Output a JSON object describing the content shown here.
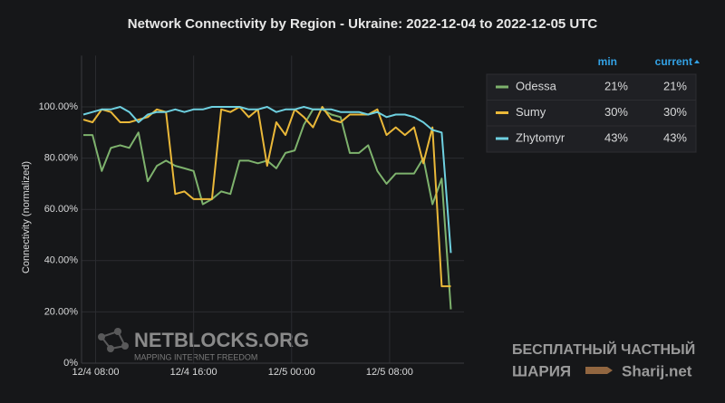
{
  "chart_data": {
    "type": "line",
    "title": "Network Connectivity by Region - Ukraine: 2022-12-04 to 2022-12-05 UTC",
    "y_label": "Connectivity (normalized)",
    "x": [
      "12/4 07:00",
      "12/4 07:45",
      "12/4 08:30",
      "12/4 09:15",
      "12/4 10:00",
      "12/4 10:45",
      "12/4 11:30",
      "12/4 12:15",
      "12/4 13:00",
      "12/4 13:45",
      "12/4 14:30",
      "12/4 15:15",
      "12/4 16:00",
      "12/4 16:45",
      "12/4 17:30",
      "12/4 18:15",
      "12/4 19:00",
      "12/4 19:45",
      "12/4 20:30",
      "12/4 21:15",
      "12/4 22:00",
      "12/4 22:45",
      "12/4 23:30",
      "12/5 00:15",
      "12/5 01:00",
      "12/5 01:45",
      "12/5 02:30",
      "12/5 03:15",
      "12/5 04:00",
      "12/5 04:45",
      "12/5 05:30",
      "12/5 06:15",
      "12/5 07:00",
      "12/5 07:45",
      "12/5 08:30",
      "12/5 09:15",
      "12/5 10:00",
      "12/5 10:45",
      "12/5 11:30",
      "12/5 12:15",
      "12/5 13:00"
    ],
    "xlim": [
      "12/4 07:00",
      "12/5 13:00"
    ],
    "xticks": [
      "12/4 08:00",
      "12/4 16:00",
      "12/5 00:00",
      "12/5 08:00"
    ],
    "ylim": [
      0,
      120
    ],
    "yticks": [
      {
        "value": 0,
        "label": "0%"
      },
      {
        "value": 20,
        "label": "20.00%"
      },
      {
        "value": 40,
        "label": "40.00%"
      },
      {
        "value": 60,
        "label": "60.00%"
      },
      {
        "value": 80,
        "label": "80.00%"
      },
      {
        "value": 100,
        "label": "100.00%"
      }
    ],
    "grid": true,
    "legend": {
      "position": "right",
      "columns": [
        "min",
        "current"
      ]
    },
    "series": [
      {
        "name": "Odessa",
        "color": "#7eb26d",
        "values": [
          89,
          89,
          75,
          84,
          85,
          84,
          90,
          71,
          77,
          79,
          77,
          76,
          75,
          62,
          64,
          67,
          66,
          79,
          79,
          78,
          79,
          76,
          82,
          83,
          93,
          99,
          99,
          97,
          96,
          82,
          82,
          85,
          75,
          70,
          74,
          74,
          74,
          80,
          62,
          72,
          21
        ],
        "stats": {
          "values": [
            21,
            21
          ],
          "value_labels": [
            "21%",
            "21%"
          ]
        }
      },
      {
        "name": "Sumy",
        "color": "#eab839",
        "values": [
          95,
          94,
          99,
          98,
          94,
          94,
          95,
          96,
          99,
          98,
          66,
          67,
          64,
          64,
          64,
          99,
          98,
          100,
          96,
          99,
          77,
          94,
          89,
          99,
          96,
          92,
          100,
          95,
          94,
          97,
          97,
          97,
          99,
          89,
          92,
          89,
          92,
          78,
          92,
          30,
          30
        ],
        "stats": {
          "values": [
            30,
            30
          ],
          "value_labels": [
            "30%",
            "30%"
          ]
        }
      },
      {
        "name": "Zhytomyr",
        "color": "#6ed0e0",
        "values": [
          97,
          98,
          99,
          99,
          100,
          98,
          94,
          97,
          98,
          98,
          99,
          98,
          99,
          99,
          100,
          100,
          100,
          100,
          99,
          99,
          100,
          98,
          99,
          99,
          100,
          99,
          99,
          99,
          98,
          98,
          98,
          97,
          98,
          96,
          97,
          97,
          96,
          94,
          91,
          90,
          43
        ],
        "stats": {
          "values": [
            43,
            43
          ],
          "value_labels": [
            "43%",
            "43%"
          ]
        }
      }
    ],
    "watermarks": [
      "NETBLOCKS.ORG",
      "MAPPING INTERNET FREEDOM",
      "БЕСПЛАТНЫЙ ЧАСТНЫЙ",
      "ШАРИЯ",
      "Sharij.net"
    ]
  }
}
